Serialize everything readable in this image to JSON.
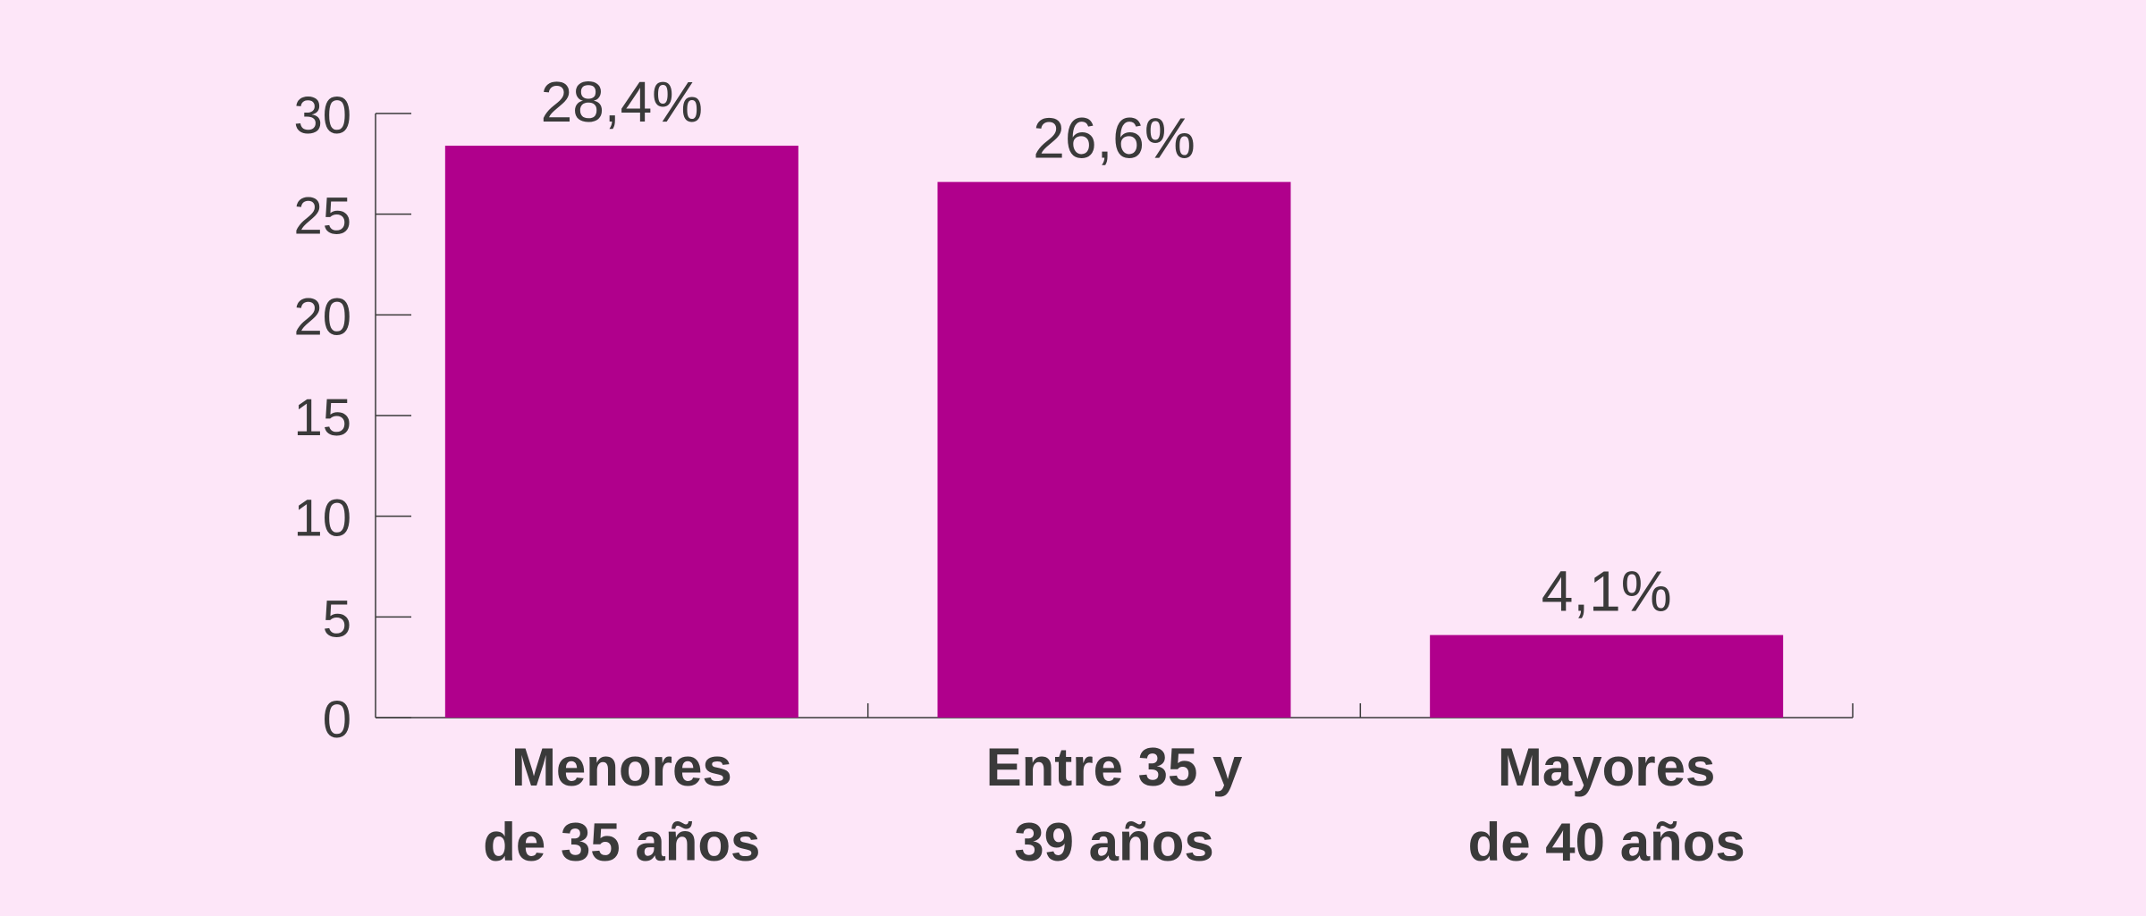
{
  "chart_data": {
    "type": "bar",
    "title": "",
    "xlabel": "",
    "ylabel": "",
    "categories": [
      [
        "Menores",
        "de 35 años"
      ],
      [
        "Entre 35 y",
        "39 años"
      ],
      [
        "Mayores",
        "de 40 años"
      ]
    ],
    "values": [
      28.4,
      26.6,
      4.1
    ],
    "data_labels": [
      "28,4%",
      "26,6%",
      "4,1%"
    ],
    "ylim": [
      0,
      30
    ],
    "yticks": [
      0,
      5,
      10,
      15,
      20,
      25,
      30
    ],
    "ytick_labels": [
      "0",
      "5",
      "10",
      "15",
      "20",
      "25",
      "30"
    ],
    "grid": false,
    "legend": "none"
  },
  "colors": {
    "background": "#fde6f8",
    "bar": "#b0008c",
    "text": "#3a3a3a",
    "axis": "#3a3a3a"
  }
}
